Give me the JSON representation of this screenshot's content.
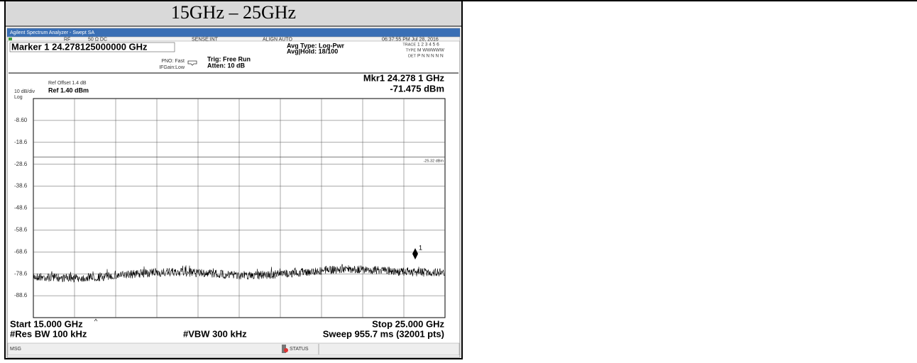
{
  "header": {
    "title": "15GHz – 25GHz"
  },
  "analyzer": {
    "window_title": "Agilent Spectrum Analyzer - Swept SA",
    "status_items": [
      "RF",
      "50 Ω  DC",
      "SENSE:INT",
      "ALIGN AUTO",
      "06:37:55 PM Jul 28, 2016"
    ],
    "marker_readout": "Marker 1 24.278125000000 GHz",
    "pno": "PNO: Fast",
    "ifgain": "IFGain:Low",
    "trig": "Trig: Free Run",
    "atten": "Atten: 10 dB",
    "avg_type": "Avg Type: Log-Pwr",
    "avg_hold": "Avg|Hold: 18/100",
    "trace_table": [
      [
        "TRACE",
        "1 2 3 4 5 6"
      ],
      [
        "TYPE",
        "M WWWWW"
      ],
      [
        "DET",
        "P N N N N N"
      ]
    ],
    "ref_offset": "Ref Offset 1.4 dB",
    "scale": "10 dB/div",
    "log": "Log",
    "ref_level": "Ref 1.40 dBm",
    "mkr_freq": "Mkr1 24.278 1 GHz",
    "mkr_level": "-71.475 dBm",
    "y_labels": [
      "-8.60",
      "-18.6",
      "-28.6",
      "-38.6",
      "-48.6",
      "-58.6",
      "-68.6",
      "-78.6",
      "-88.6"
    ],
    "limit_label": "-25.32 dBm",
    "marker_label": "1",
    "start": "Start 15.000 GHz",
    "stop": "Stop 25.000 GHz",
    "res_bw": "#Res BW 100 kHz",
    "vbw": "#VBW 300 kHz",
    "sweep": "Sweep  955.7 ms (32001 pts)",
    "msg": "MSG",
    "status": "STATUS"
  }
}
